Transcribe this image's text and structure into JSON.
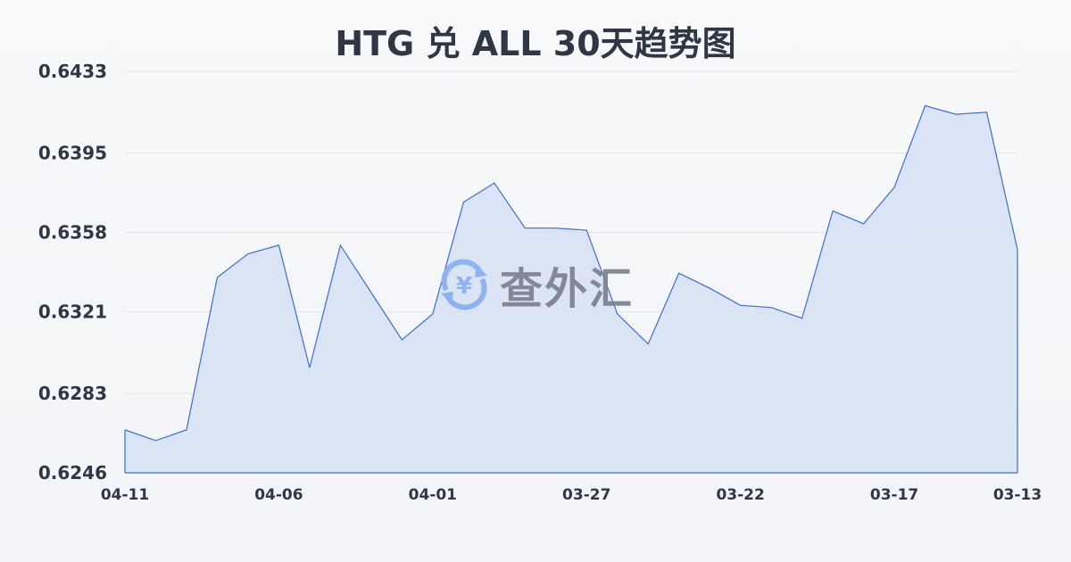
{
  "chart_data": {
    "type": "area",
    "title": "HTG 兑 ALL 30天趋势图",
    "x": [
      "04-11",
      "04-10",
      "04-09",
      "04-08",
      "04-07",
      "04-06",
      "04-05",
      "04-04",
      "04-03",
      "04-02",
      "04-01",
      "03-31",
      "03-30",
      "03-29",
      "03-28",
      "03-27",
      "03-26",
      "03-25",
      "03-24",
      "03-23",
      "03-22",
      "03-21",
      "03-20",
      "03-19",
      "03-18",
      "03-17",
      "03-16",
      "03-15",
      "03-14",
      "03-13"
    ],
    "values": [
      0.6266,
      0.6261,
      0.6266,
      0.6337,
      0.6348,
      0.6352,
      0.6295,
      0.6352,
      0.633,
      0.6308,
      0.632,
      0.6372,
      0.6381,
      0.636,
      0.636,
      0.6359,
      0.632,
      0.6306,
      0.6339,
      0.6332,
      0.6324,
      0.6323,
      0.6318,
      0.6368,
      0.6362,
      0.6379,
      0.6417,
      0.6413,
      0.6414,
      0.635
    ],
    "x_tick_labels": [
      "04-11",
      "04-06",
      "04-01",
      "03-27",
      "03-22",
      "03-17",
      "03-13"
    ],
    "y_tick_labels": [
      "0.6433",
      "0.6395",
      "0.6358",
      "0.6321",
      "0.6283",
      "0.6246"
    ],
    "ylim": [
      0.6246,
      0.6433
    ],
    "grid": true,
    "colors": {
      "line": "#3a6fd8",
      "fill": "#d6e1f5",
      "grid": "#e3e6ec",
      "text": "#2f3747"
    }
  },
  "watermark": {
    "text": "查外汇",
    "icon": "yen-exchange-icon"
  }
}
